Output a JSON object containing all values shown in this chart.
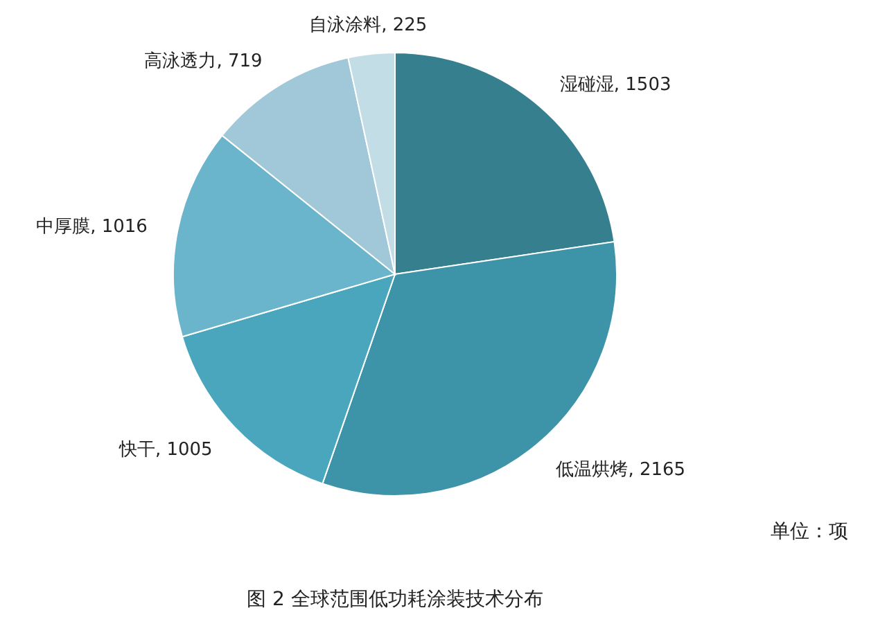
{
  "chart_data": {
    "type": "pie",
    "title": "图 2 全球范围低功耗涂装技术分布",
    "categories": [
      "湿碰湿",
      "低温烘烤",
      "快干",
      "中厚膜",
      "高泳透力",
      "自泳涂料"
    ],
    "values": [
      1503,
      2165,
      1005,
      1016,
      719,
      225
    ],
    "colors": [
      "#367f8e",
      "#3d93a8",
      "#4aa6bd",
      "#6ab5cb",
      "#a0c8d8",
      "#c3dde6"
    ],
    "value_labels": [
      ", 1503",
      ", 2165",
      ", 1005",
      ", 1016",
      ", 719",
      ", 225"
    ],
    "annotations": [
      "单位：项"
    ]
  }
}
